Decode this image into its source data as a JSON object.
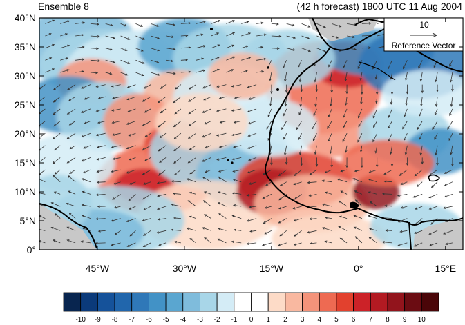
{
  "header": {
    "ensemble_label": "Ensemble 8",
    "forecast_label": "(42 h forecast) 1800 UTC 11 Aug 2004"
  },
  "axes": {
    "lat_ticks": [
      "40°N",
      "35°N",
      "30°N",
      "25°N",
      "20°N",
      "15°N",
      "10°N",
      "5°N",
      "0°"
    ],
    "lon_ticks": [
      "45°W",
      "30°W",
      "15°W",
      "0°",
      "15°E"
    ],
    "lat_values": [
      40,
      35,
      30,
      25,
      20,
      15,
      10,
      5,
      0
    ],
    "lon_values": [
      -45,
      -30,
      -15,
      0,
      15
    ],
    "lon_range": [
      -55,
      18
    ],
    "lat_range": [
      0,
      40
    ]
  },
  "reference_vector": {
    "magnitude": "10",
    "label": "Reference Vector"
  },
  "colorbar": {
    "labels": [
      "-10",
      "-9",
      "-8",
      "-7",
      "-6",
      "-5",
      "-4",
      "-3",
      "-2",
      "-1",
      "0",
      "1",
      "2",
      "3",
      "4",
      "5",
      "6",
      "7",
      "8",
      "9",
      "10"
    ],
    "colors": [
      "#08254f",
      "#0b3a7a",
      "#15529a",
      "#2166ac",
      "#2f78b8",
      "#4292c6",
      "#5aa6d0",
      "#7fbcdc",
      "#a8d6e8",
      "#d4ecf6",
      "#ffffff",
      "#ffffff",
      "#fddbc7",
      "#f9b8a0",
      "#f4937a",
      "#ee6a52",
      "#e2412e",
      "#cc2228",
      "#b31a22",
      "#92141c",
      "#6b0c12",
      "#4a0508"
    ]
  },
  "style": {
    "frame_color": "#000000",
    "land_mask_color": "#c8c8c8",
    "coast_color": "#000000",
    "vector_color": "#333333"
  }
}
